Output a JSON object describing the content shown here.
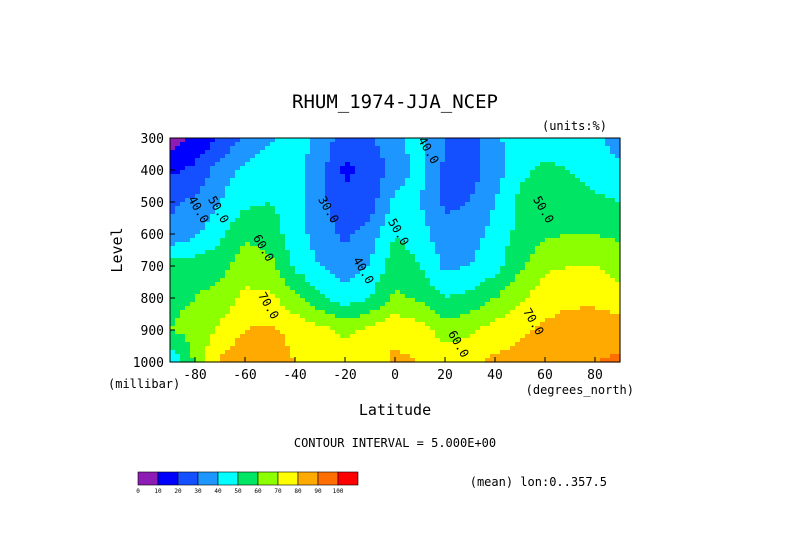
{
  "chart_data": {
    "type": "heatmap",
    "title": "RHUM_1974-JJA_NCEP",
    "units_label": "(units:%)",
    "xlabel": "Latitude",
    "ylabel": "Level",
    "x_units": "(degrees_north)",
    "y_units": "(millibar)",
    "xlim": [
      -90,
      90
    ],
    "ylim": [
      1000,
      300
    ],
    "x_ticks": [
      -80,
      -60,
      -40,
      -20,
      0,
      20,
      40,
      60,
      80
    ],
    "y_ticks": [
      300,
      400,
      500,
      600,
      700,
      800,
      900,
      1000
    ],
    "contour_interval_label": "CONTOUR INTERVAL = 5.000E+00",
    "footer_label": "(mean) lon:0..357.5",
    "colorbar": {
      "ticks": [
        "0",
        "10",
        "20",
        "30",
        "40",
        "50",
        "60",
        "70",
        "80",
        "90",
        "100"
      ],
      "colors": [
        "#8c1cb4",
        "#0000ff",
        "#1450ff",
        "#1e96ff",
        "#00ffff",
        "#00e664",
        "#8cff00",
        "#ffff00",
        "#ffaa00",
        "#ff6e00",
        "#ff0000"
      ]
    },
    "contour_labels": [
      {
        "text": "40.0",
        "lat": 12,
        "lev": 345
      },
      {
        "text": "40.0",
        "lat": -80,
        "lev": 530
      },
      {
        "text": "50.0",
        "lat": -72,
        "lev": 530
      },
      {
        "text": "30.0",
        "lat": -28,
        "lev": 530
      },
      {
        "text": "50.0",
        "lat": 58,
        "lev": 530
      },
      {
        "text": "50.0",
        "lat": 0,
        "lev": 600
      },
      {
        "text": "60.0",
        "lat": -54,
        "lev": 650
      },
      {
        "text": "40.0",
        "lat": -14,
        "lev": 720
      },
      {
        "text": "70.0",
        "lat": -52,
        "lev": 830
      },
      {
        "text": "70.0",
        "lat": 54,
        "lev": 880
      },
      {
        "text": "60.0",
        "lat": 24,
        "lev": 950
      }
    ],
    "grid": {
      "lat": [
        -90,
        -80,
        -70,
        -60,
        -50,
        -40,
        -30,
        -20,
        -10,
        0,
        10,
        20,
        30,
        40,
        50,
        60,
        70,
        80,
        90
      ],
      "lev": [
        300,
        400,
        500,
        600,
        700,
        800,
        900,
        1000
      ],
      "values": [
        [
          5,
          12,
          20,
          33,
          38,
          44,
          38,
          24,
          28,
          38,
          43,
          30,
          25,
          38,
          45,
          44,
          45,
          42,
          35
        ],
        [
          18,
          22,
          35,
          42,
          48,
          45,
          33,
          18,
          22,
          35,
          44,
          28,
          25,
          35,
          48,
          52,
          50,
          46,
          42
        ],
        [
          28,
          32,
          40,
          48,
          50,
          45,
          33,
          23,
          25,
          43,
          40,
          28,
          30,
          40,
          52,
          55,
          54,
          52,
          50
        ],
        [
          32,
          38,
          48,
          58,
          55,
          45,
          35,
          28,
          34,
          50,
          45,
          33,
          35,
          44,
          53,
          58,
          60,
          60,
          58
        ],
        [
          55,
          55,
          56,
          66,
          63,
          48,
          40,
          35,
          41,
          56,
          50,
          38,
          40,
          46,
          58,
          68,
          70,
          70,
          66
        ],
        [
          58,
          60,
          64,
          72,
          72,
          63,
          52,
          44,
          50,
          62,
          58,
          50,
          53,
          60,
          68,
          76,
          78,
          78,
          74
        ],
        [
          60,
          63,
          72,
          80,
          82,
          77,
          73,
          68,
          72,
          78,
          74,
          65,
          68,
          74,
          78,
          82,
          84,
          85,
          86
        ],
        [
          40,
          62,
          82,
          88,
          85,
          80,
          78,
          75,
          76,
          82,
          80,
          76,
          78,
          82,
          84,
          84,
          85,
          90,
          92
        ]
      ]
    }
  }
}
